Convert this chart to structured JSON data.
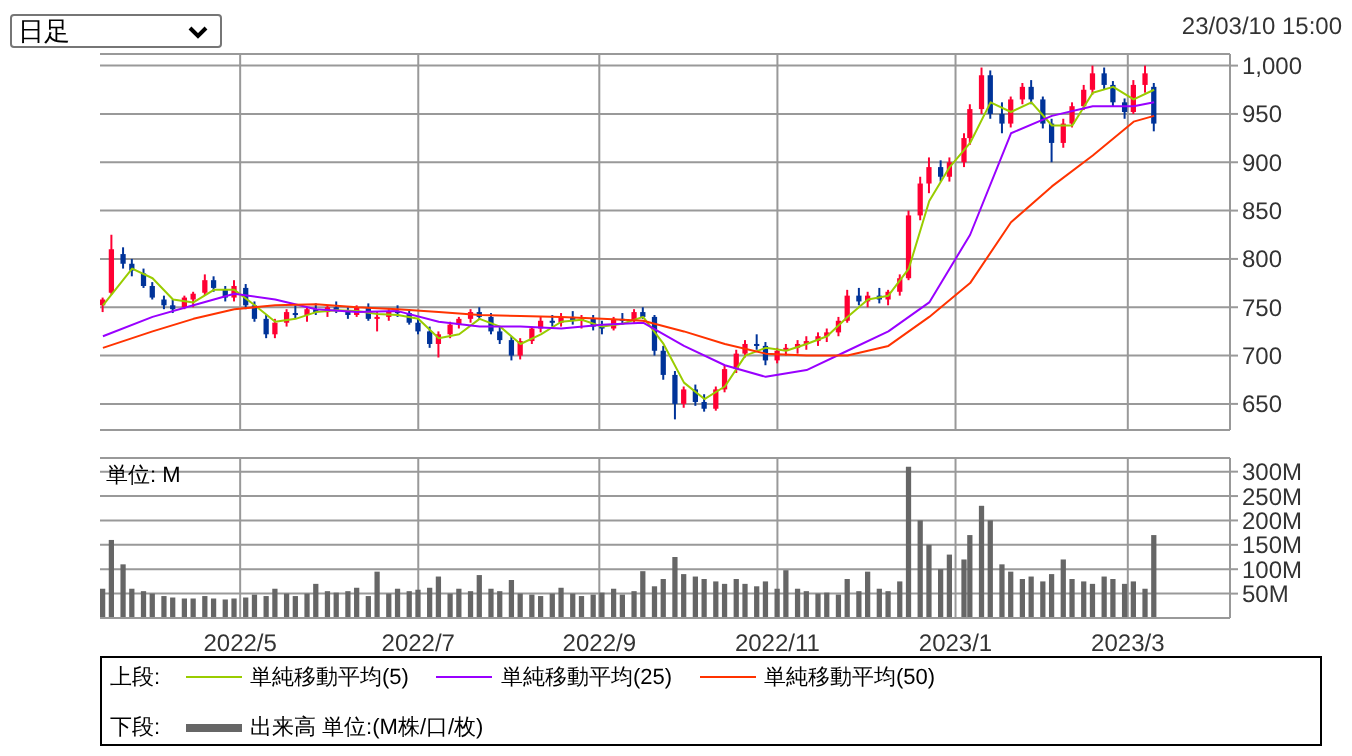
{
  "chart_data": [
    {
      "type": "candlestick",
      "annotations": [
        "日足",
        "23/03/10 15:00"
      ],
      "legend": "bottom",
      "legend_title": "上段:",
      "tick_labels": "y",
      "grid": true,
      "xlim": [
        "2022-03-14",
        "2023-04-05"
      ],
      "xticks": [
        {
          "value": "2022-05",
          "label": null
        },
        {
          "value": "2022-07",
          "label": null
        },
        {
          "value": "2022-09",
          "label": null
        },
        {
          "value": "2022-11",
          "label": null
        },
        {
          "value": "2023-01",
          "label": null
        },
        {
          "value": "2023-03",
          "label": null
        }
      ],
      "ylim": [
        623,
        1012
      ],
      "yticks": [
        650,
        700,
        750,
        800,
        850,
        900,
        950,
        {
          "value": 1000,
          "label": "1,000"
        }
      ],
      "x": [
        "2022-03-15",
        "2022-03-18",
        "2022-03-22",
        "2022-03-25",
        "2022-03-29",
        "2022-04-01",
        "2022-04-05",
        "2022-04-08",
        "2022-04-12",
        "2022-04-15",
        "2022-04-19",
        "2022-04-22",
        "2022-04-26",
        "2022-04-29",
        "2022-05-03",
        "2022-05-06",
        "2022-05-10",
        "2022-05-13",
        "2022-05-17",
        "2022-05-20",
        "2022-05-24",
        "2022-05-27",
        "2022-05-31",
        "2022-06-03",
        "2022-06-07",
        "2022-06-10",
        "2022-06-14",
        "2022-06-17",
        "2022-06-21",
        "2022-06-24",
        "2022-06-28",
        "2022-07-01",
        "2022-07-05",
        "2022-07-08",
        "2022-07-12",
        "2022-07-15",
        "2022-07-19",
        "2022-07-22",
        "2022-07-26",
        "2022-07-29",
        "2022-08-02",
        "2022-08-05",
        "2022-08-09",
        "2022-08-12",
        "2022-08-16",
        "2022-08-19",
        "2022-08-23",
        "2022-08-26",
        "2022-08-30",
        "2022-09-02",
        "2022-09-06",
        "2022-09-09",
        "2022-09-13",
        "2022-09-16",
        "2022-09-20",
        "2022-09-23",
        "2022-09-27",
        "2022-09-30",
        "2022-10-04",
        "2022-10-07",
        "2022-10-11",
        "2022-10-14",
        "2022-10-18",
        "2022-10-21",
        "2022-10-25",
        "2022-10-28",
        "2022-11-01",
        "2022-11-04",
        "2022-11-08",
        "2022-11-11",
        "2022-11-15",
        "2022-11-18",
        "2022-11-22",
        "2022-11-25",
        "2022-11-29",
        "2022-12-02",
        "2022-12-06",
        "2022-12-09",
        "2022-12-13",
        "2022-12-16",
        "2022-12-20",
        "2022-12-23",
        "2022-12-27",
        "2022-12-30",
        "2023-01-04",
        "2023-01-06",
        "2023-01-10",
        "2023-01-13",
        "2023-01-17",
        "2023-01-20",
        "2023-01-24",
        "2023-01-27",
        "2023-01-31",
        "2023-02-03",
        "2023-02-07",
        "2023-02-10",
        "2023-02-14",
        "2023-02-17",
        "2023-02-21",
        "2023-02-24",
        "2023-02-28",
        "2023-03-03",
        "2023-03-07",
        "2023-03-10"
      ],
      "ohlc": [
        [
          752,
          760,
          745,
          758
        ],
        [
          765,
          825,
          763,
          810
        ],
        [
          805,
          812,
          790,
          795
        ],
        [
          795,
          800,
          782,
          788
        ],
        [
          785,
          790,
          770,
          772
        ],
        [
          772,
          776,
          758,
          760
        ],
        [
          758,
          762,
          748,
          752
        ],
        [
          752,
          758,
          744,
          748
        ],
        [
          750,
          762,
          748,
          760
        ],
        [
          758,
          766,
          750,
          764
        ],
        [
          765,
          784,
          762,
          778
        ],
        [
          778,
          782,
          766,
          770
        ],
        [
          768,
          772,
          756,
          760
        ],
        [
          760,
          778,
          756,
          772
        ],
        [
          770,
          774,
          748,
          752
        ],
        [
          752,
          756,
          735,
          738
        ],
        [
          738,
          742,
          718,
          722
        ],
        [
          722,
          738,
          718,
          734
        ],
        [
          734,
          748,
          730,
          745
        ],
        [
          744,
          752,
          738,
          742
        ],
        [
          742,
          750,
          735,
          748
        ],
        [
          748,
          754,
          742,
          745
        ],
        [
          745,
          752,
          740,
          750
        ],
        [
          750,
          756,
          744,
          746
        ],
        [
          746,
          750,
          738,
          742
        ],
        [
          742,
          752,
          740,
          750
        ],
        [
          750,
          754,
          736,
          738
        ],
        [
          738,
          745,
          725,
          740
        ],
        [
          740,
          748,
          736,
          746
        ],
        [
          746,
          752,
          740,
          744
        ],
        [
          744,
          748,
          732,
          734
        ],
        [
          734,
          738,
          722,
          725
        ],
        [
          725,
          730,
          708,
          712
        ],
        [
          712,
          725,
          698,
          722
        ],
        [
          722,
          735,
          718,
          732
        ],
        [
          732,
          740,
          728,
          738
        ],
        [
          738,
          748,
          734,
          745
        ],
        [
          745,
          750,
          738,
          740
        ],
        [
          740,
          744,
          722,
          725
        ],
        [
          725,
          730,
          712,
          716
        ],
        [
          716,
          720,
          695,
          700
        ],
        [
          700,
          718,
          696,
          715
        ],
        [
          715,
          730,
          712,
          728
        ],
        [
          728,
          740,
          724,
          736
        ],
        [
          736,
          742,
          730,
          734
        ],
        [
          734,
          744,
          730,
          740
        ],
        [
          740,
          746,
          732,
          736
        ],
        [
          736,
          742,
          728,
          738
        ],
        [
          738,
          742,
          726,
          730
        ],
        [
          730,
          736,
          722,
          728
        ],
        [
          728,
          740,
          726,
          738
        ],
        [
          738,
          744,
          732,
          736
        ],
        [
          736,
          748,
          734,
          745
        ],
        [
          745,
          750,
          738,
          740
        ],
        [
          740,
          742,
          700,
          705
        ],
        [
          705,
          710,
          675,
          680
        ],
        [
          680,
          684,
          634,
          650
        ],
        [
          650,
          668,
          646,
          665
        ],
        [
          665,
          670,
          648,
          652
        ],
        [
          652,
          660,
          642,
          645
        ],
        [
          645,
          668,
          643,
          665
        ],
        [
          665,
          690,
          662,
          686
        ],
        [
          686,
          706,
          682,
          702
        ],
        [
          702,
          716,
          698,
          712
        ],
        [
          712,
          722,
          706,
          710
        ],
        [
          710,
          714,
          690,
          695
        ],
        [
          695,
          708,
          692,
          705
        ],
        [
          705,
          712,
          700,
          708
        ],
        [
          708,
          716,
          702,
          712
        ],
        [
          712,
          720,
          706,
          715
        ],
        [
          715,
          724,
          710,
          720
        ],
        [
          720,
          728,
          714,
          724
        ],
        [
          724,
          740,
          720,
          736
        ],
        [
          736,
          768,
          734,
          762
        ],
        [
          762,
          770,
          752,
          756
        ],
        [
          756,
          766,
          750,
          762
        ],
        [
          762,
          770,
          754,
          758
        ],
        [
          758,
          768,
          752,
          766
        ],
        [
          766,
          784,
          762,
          780
        ],
        [
          780,
          850,
          778,
          845
        ],
        [
          845,
          885,
          840,
          878
        ],
        [
          878,
          905,
          868,
          895
        ],
        [
          895,
          902,
          880,
          885
        ],
        [
          885,
          905,
          880,
          900
        ],
        [
          900,
          930,
          895,
          925
        ],
        [
          925,
          960,
          918,
          955
        ],
        [
          955,
          998,
          950,
          990
        ],
        [
          990,
          995,
          945,
          950
        ],
        [
          950,
          962,
          930,
          940
        ],
        [
          940,
          968,
          936,
          965
        ],
        [
          965,
          982,
          960,
          978
        ],
        [
          978,
          985,
          960,
          965
        ],
        [
          965,
          968,
          935,
          940
        ],
        [
          940,
          945,
          900,
          920
        ],
        [
          920,
          945,
          915,
          940
        ],
        [
          940,
          962,
          936,
          958
        ],
        [
          958,
          980,
          954,
          975
        ],
        [
          975,
          1000,
          970,
          992
        ],
        [
          992,
          998,
          975,
          980
        ],
        [
          980,
          984,
          958,
          962
        ],
        [
          962,
          966,
          945,
          952
        ],
        [
          952,
          985,
          950,
          980
        ],
        [
          980,
          1000,
          972,
          992
        ],
        [
          978,
          982,
          932,
          940
        ]
      ],
      "colors": [
        "#ff0033",
        "#ff0033",
        "#003399",
        "#003399",
        "#003399",
        "#003399",
        "#003399",
        "#003399",
        "#ff0033",
        "#ff0033",
        "#ff0033",
        "#003399",
        "#003399",
        "#ff0033",
        "#003399",
        "#003399",
        "#003399",
        "#ff0033",
        "#ff0033",
        "#003399",
        "#ff0033",
        "#003399",
        "#ff0033",
        "#003399",
        "#003399",
        "#ff0033",
        "#003399",
        "#ff0033",
        "#ff0033",
        "#003399",
        "#003399",
        "#003399",
        "#003399",
        "#ff0033",
        "#ff0033",
        "#ff0033",
        "#ff0033",
        "#003399",
        "#003399",
        "#003399",
        "#003399",
        "#ff0033",
        "#ff0033",
        "#ff0033",
        "#003399",
        "#ff0033",
        "#003399",
        "#ff0033",
        "#003399",
        "#003399",
        "#ff0033",
        "#003399",
        "#ff0033",
        "#003399",
        "#003399",
        "#003399",
        "#003399",
        "#ff0033",
        "#003399",
        "#003399",
        "#ff0033",
        "#ff0033",
        "#ff0033",
        "#ff0033",
        "#003399",
        "#003399",
        "#ff0033",
        "#ff0033",
        "#ff0033",
        "#ff0033",
        "#ff0033",
        "#ff0033",
        "#ff0033",
        "#ff0033",
        "#003399",
        "#ff0033",
        "#003399",
        "#ff0033",
        "#ff0033",
        "#ff0033",
        "#ff0033",
        "#ff0033",
        "#003399",
        "#ff0033",
        "#ff0033",
        "#ff0033",
        "#ff0033",
        "#003399",
        "#003399",
        "#ff0033",
        "#ff0033",
        "#003399",
        "#003399",
        "#003399",
        "#ff0033",
        "#ff0033",
        "#ff0033",
        "#ff0033",
        "#003399",
        "#003399",
        "#003399",
        "#ff0033",
        "#ff0033",
        "#003399"
      ],
      "series": [
        {
          "type": "line",
          "name": "単純移動平均(5)",
          "color": "#99cc00",
          "x": [
            "2022-03-15",
            "2022-03-25",
            "2022-04-01",
            "2022-04-08",
            "2022-04-15",
            "2022-04-22",
            "2022-04-29",
            "2022-05-06",
            "2022-05-13",
            "2022-05-20",
            "2022-05-27",
            "2022-06-03",
            "2022-06-10",
            "2022-06-17",
            "2022-06-24",
            "2022-07-01",
            "2022-07-08",
            "2022-07-15",
            "2022-07-22",
            "2022-07-29",
            "2022-08-05",
            "2022-08-12",
            "2022-08-19",
            "2022-08-26",
            "2022-09-02",
            "2022-09-09",
            "2022-09-16",
            "2022-09-23",
            "2022-09-30",
            "2022-10-07",
            "2022-10-14",
            "2022-10-21",
            "2022-10-28",
            "2022-11-04",
            "2022-11-11",
            "2022-11-18",
            "2022-11-25",
            "2022-12-02",
            "2022-12-09",
            "2022-12-16",
            "2022-12-23",
            "2022-12-30",
            "2023-01-06",
            "2023-01-13",
            "2023-01-20",
            "2023-01-27",
            "2023-02-03",
            "2023-02-10",
            "2023-02-17",
            "2023-02-24",
            "2023-03-03",
            "2023-03-10"
          ],
          "values": [
            752,
            790,
            780,
            758,
            755,
            768,
            768,
            752,
            735,
            738,
            745,
            747,
            746,
            743,
            742,
            738,
            718,
            722,
            738,
            730,
            712,
            722,
            735,
            737,
            730,
            733,
            740,
            712,
            672,
            655,
            668,
            700,
            708,
            705,
            712,
            720,
            740,
            758,
            762,
            790,
            860,
            895,
            920,
            962,
            952,
            962,
            938,
            938,
            972,
            978,
            965,
            975
          ]
        },
        {
          "type": "line",
          "name": "単純移動平均(25)",
          "color": "#9900ff",
          "x": [
            "2022-03-15",
            "2022-04-01",
            "2022-04-15",
            "2022-04-29",
            "2022-05-13",
            "2022-05-27",
            "2022-06-10",
            "2022-06-24",
            "2022-07-08",
            "2022-07-22",
            "2022-08-05",
            "2022-08-19",
            "2022-09-02",
            "2022-09-16",
            "2022-09-30",
            "2022-10-14",
            "2022-10-28",
            "2022-11-11",
            "2022-11-25",
            "2022-12-09",
            "2022-12-23",
            "2023-01-06",
            "2023-01-20",
            "2023-02-03",
            "2023-02-17",
            "2023-03-03",
            "2023-03-10"
          ],
          "values": [
            720,
            740,
            752,
            764,
            758,
            748,
            745,
            746,
            735,
            730,
            730,
            728,
            732,
            734,
            710,
            690,
            678,
            685,
            705,
            725,
            755,
            825,
            930,
            948,
            958,
            958,
            962
          ]
        },
        {
          "type": "line",
          "name": "単純移動平均(50)",
          "color": "#ff3300",
          "x": [
            "2022-03-15",
            "2022-04-01",
            "2022-04-15",
            "2022-04-29",
            "2022-05-13",
            "2022-05-27",
            "2022-06-10",
            "2022-06-24",
            "2022-07-08",
            "2022-07-22",
            "2022-08-05",
            "2022-08-19",
            "2022-09-02",
            "2022-09-16",
            "2022-09-30",
            "2022-10-14",
            "2022-10-28",
            "2022-11-11",
            "2022-11-25",
            "2022-12-09",
            "2022-12-23",
            "2023-01-06",
            "2023-01-20",
            "2023-02-03",
            "2023-02-17",
            "2023-03-03",
            "2023-03-10"
          ],
          "values": [
            708,
            725,
            738,
            748,
            752,
            753,
            750,
            748,
            745,
            742,
            741,
            740,
            738,
            736,
            725,
            712,
            702,
            700,
            700,
            710,
            740,
            775,
            838,
            875,
            907,
            942,
            948
          ]
        }
      ]
    },
    {
      "type": "bar",
      "ylabel": "単位: M",
      "legend": "bottom",
      "legend_title": "下段:",
      "grid": true,
      "xlim": [
        "2022-03-14",
        "2023-04-05"
      ],
      "xticks": [
        {
          "value": "2022-05",
          "label": "2022/5"
        },
        {
          "value": "2022-07",
          "label": "2022/7"
        },
        {
          "value": "2022-09",
          "label": "2022/9"
        },
        {
          "value": "2022-11",
          "label": "2022/11"
        },
        {
          "value": "2023-01",
          "label": "2023/1"
        },
        {
          "value": "2023-03",
          "label": "2023/3"
        }
      ],
      "ylim": [
        0,
        328
      ],
      "yticks": [
        {
          "value": 50,
          "label": "50M"
        },
        {
          "value": 100,
          "label": "100M"
        },
        {
          "value": 150,
          "label": "150M"
        },
        {
          "value": 200,
          "label": "200M"
        },
        {
          "value": 250,
          "label": "250M"
        },
        {
          "value": 300,
          "label": "300M"
        }
      ],
      "x": [
        "2022-03-15",
        "2022-03-18",
        "2022-03-22",
        "2022-03-25",
        "2022-03-29",
        "2022-04-01",
        "2022-04-05",
        "2022-04-08",
        "2022-04-12",
        "2022-04-15",
        "2022-04-19",
        "2022-04-22",
        "2022-04-26",
        "2022-04-29",
        "2022-05-03",
        "2022-05-06",
        "2022-05-10",
        "2022-05-13",
        "2022-05-17",
        "2022-05-20",
        "2022-05-24",
        "2022-05-27",
        "2022-05-31",
        "2022-06-03",
        "2022-06-07",
        "2022-06-10",
        "2022-06-14",
        "2022-06-17",
        "2022-06-21",
        "2022-06-24",
        "2022-06-28",
        "2022-07-01",
        "2022-07-05",
        "2022-07-08",
        "2022-07-12",
        "2022-07-15",
        "2022-07-19",
        "2022-07-22",
        "2022-07-26",
        "2022-07-29",
        "2022-08-02",
        "2022-08-05",
        "2022-08-09",
        "2022-08-12",
        "2022-08-16",
        "2022-08-19",
        "2022-08-23",
        "2022-08-26",
        "2022-08-30",
        "2022-09-02",
        "2022-09-06",
        "2022-09-09",
        "2022-09-13",
        "2022-09-16",
        "2022-09-20",
        "2022-09-23",
        "2022-09-27",
        "2022-09-30",
        "2022-10-04",
        "2022-10-07",
        "2022-10-11",
        "2022-10-14",
        "2022-10-18",
        "2022-10-21",
        "2022-10-25",
        "2022-10-28",
        "2022-11-01",
        "2022-11-04",
        "2022-11-08",
        "2022-11-11",
        "2022-11-15",
        "2022-11-18",
        "2022-11-22",
        "2022-11-25",
        "2022-11-29",
        "2022-12-02",
        "2022-12-06",
        "2022-12-09",
        "2022-12-13",
        "2022-12-16",
        "2022-12-20",
        "2022-12-23",
        "2022-12-27",
        "2022-12-30",
        "2023-01-04",
        "2023-01-06",
        "2023-01-10",
        "2023-01-13",
        "2023-01-17",
        "2023-01-20",
        "2023-01-24",
        "2023-01-27",
        "2023-01-31",
        "2023-02-03",
        "2023-02-07",
        "2023-02-10",
        "2023-02-14",
        "2023-02-17",
        "2023-02-21",
        "2023-02-24",
        "2023-02-28",
        "2023-03-03",
        "2023-03-07",
        "2023-03-10"
      ],
      "series": [
        {
          "name": "出来高 単位:(M株/口/枚)",
          "color": "#666666",
          "values": [
            60,
            160,
            110,
            60,
            55,
            50,
            45,
            42,
            40,
            40,
            45,
            40,
            38,
            40,
            42,
            48,
            45,
            60,
            50,
            45,
            50,
            70,
            55,
            52,
            55,
            62,
            45,
            95,
            50,
            60,
            55,
            58,
            62,
            85,
            50,
            60,
            55,
            88,
            60,
            55,
            78,
            50,
            48,
            45,
            50,
            62,
            50,
            45,
            48,
            52,
            60,
            48,
            55,
            96,
            65,
            80,
            125,
            90,
            85,
            80,
            75,
            70,
            80,
            70,
            65,
            75,
            60,
            98,
            60,
            55,
            50,
            52,
            48,
            80,
            55,
            95,
            60,
            55,
            75,
            310,
            200,
            150,
            100,
            130,
            120,
            170,
            230,
            200,
            110,
            95,
            80,
            85,
            75,
            90,
            120,
            80,
            75,
            70,
            85,
            80,
            70,
            75,
            60,
            170
          ]
        }
      ]
    }
  ]
}
